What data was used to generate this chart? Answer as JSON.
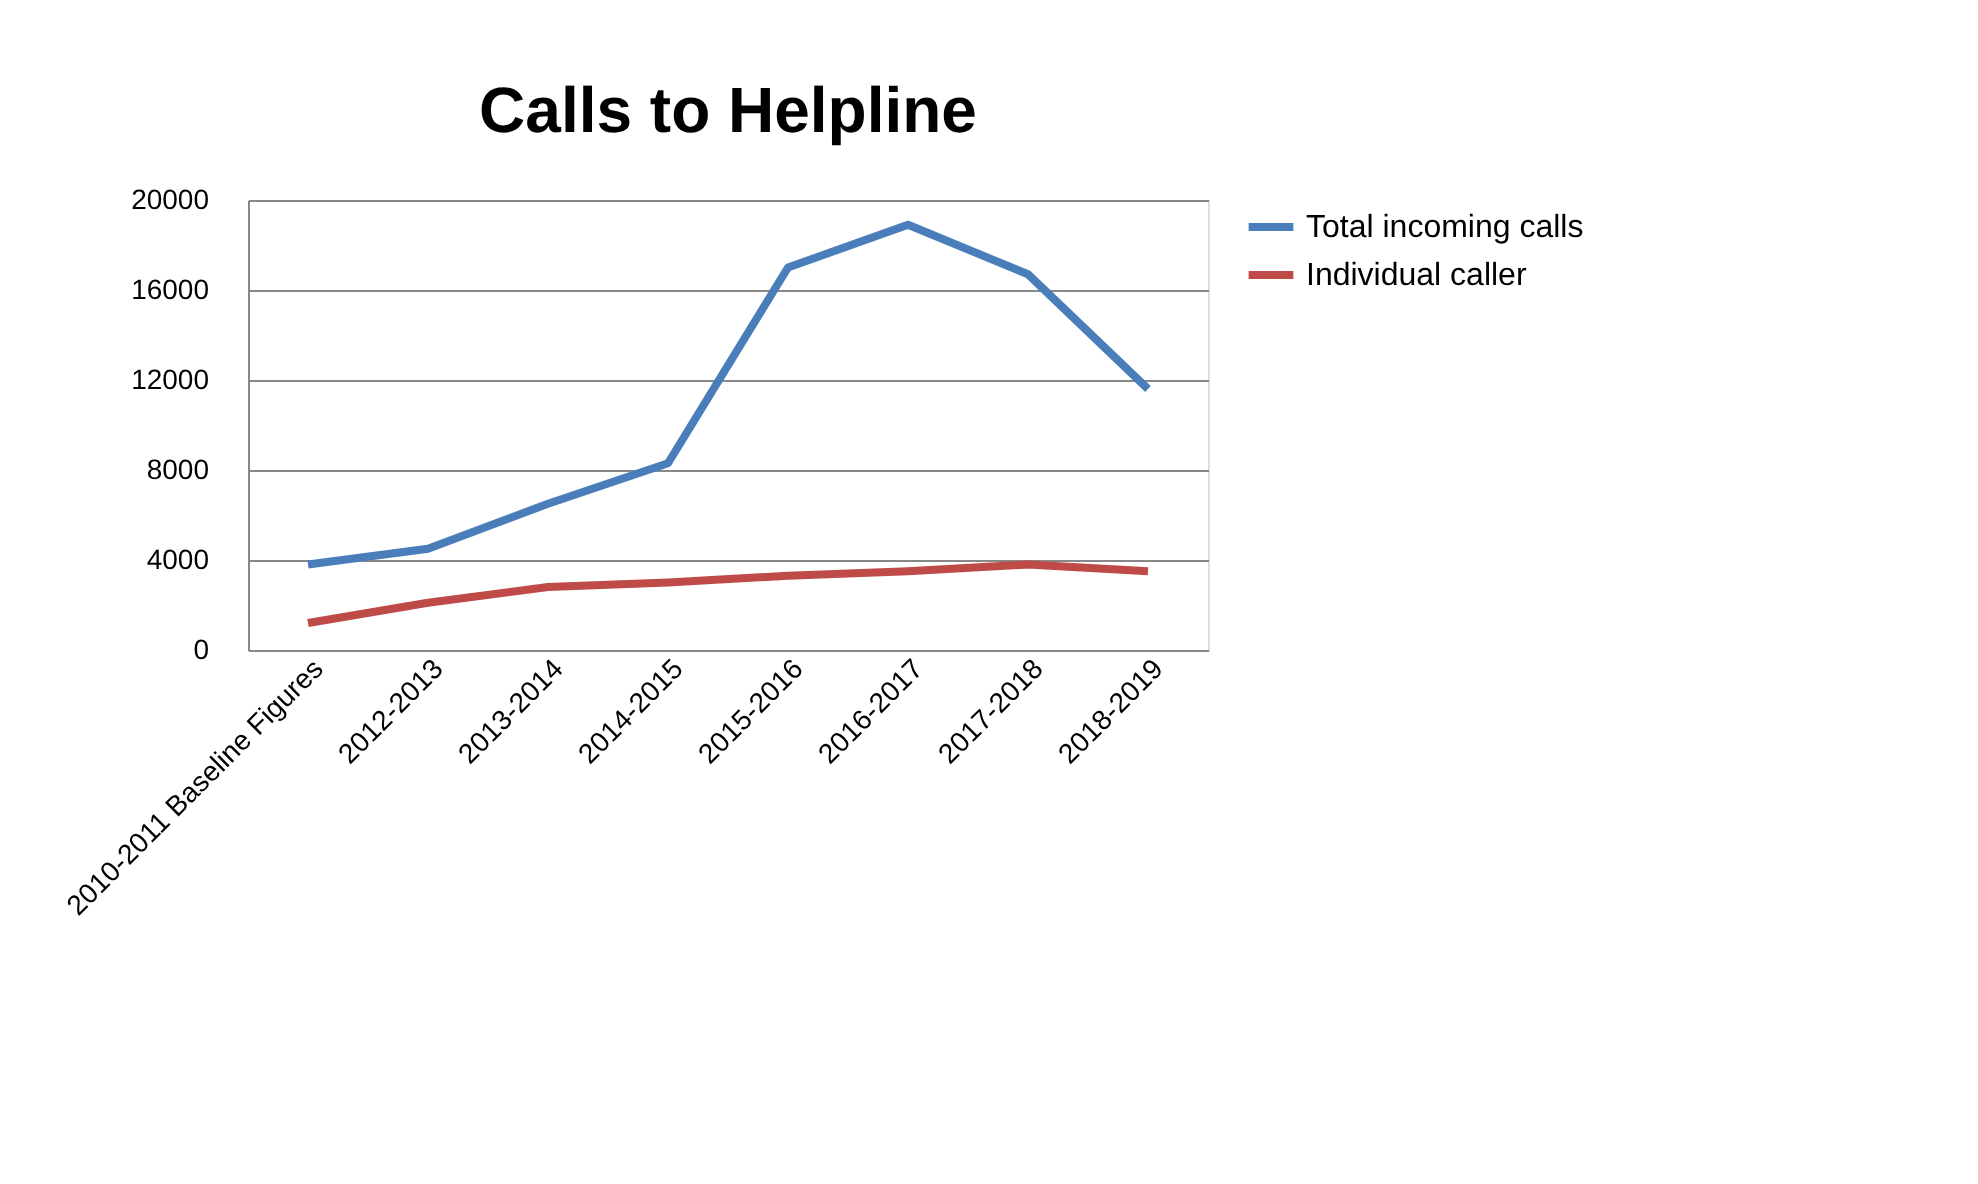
{
  "chart_data": {
    "type": "line",
    "title": "Calls to Helpline",
    "categories": [
      "2010-2011 Baseline Figures",
      "2012-2013",
      "2013-2014",
      "2014-2015",
      "2015-2016",
      "2016-2017",
      "2017-2018",
      "2018-2019"
    ],
    "series": [
      {
        "name": "Total incoming calls",
        "color": "#4a7ebb",
        "values": [
          3800,
          4500,
          6500,
          8300,
          17000,
          18900,
          16700,
          11600
        ]
      },
      {
        "name": "Individual caller",
        "color": "#be4b48",
        "values": [
          1200,
          2100,
          2800,
          3000,
          3300,
          3500,
          3800,
          3500
        ]
      }
    ],
    "ylim": [
      0,
      20000
    ],
    "yticks": [
      0,
      4000,
      8000,
      12000,
      16000,
      20000
    ],
    "grid": "y",
    "legend": "right",
    "line_style": "solid",
    "marker": "none"
  }
}
